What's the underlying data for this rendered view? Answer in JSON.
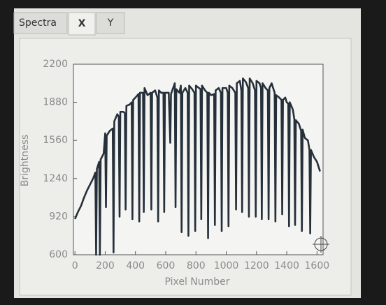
{
  "tabs": [
    "Spectra",
    "X",
    "Y"
  ],
  "chart_data": {
    "type": "line",
    "x_label": "Pixel Number",
    "y_label": "Brightness",
    "xlim": [
      -10,
      1640
    ],
    "ylim": [
      600,
      2200
    ],
    "xticks": [
      0,
      200,
      400,
      600,
      800,
      1000,
      1200,
      1400,
      1600
    ],
    "yticks": [
      600,
      920,
      1240,
      1560,
      1880,
      2200
    ],
    "grid": false,
    "series": [
      {
        "color": "#26303a",
        "x": [
          0,
          20,
          40,
          60,
          80,
          100,
          120,
          135,
          140,
          145,
          160,
          165,
          170,
          190,
          200,
          205,
          210,
          230,
          250,
          255,
          260,
          280,
          290,
          295,
          300,
          320,
          330,
          335,
          340,
          360,
          375,
          380,
          385,
          400,
          420,
          425,
          430,
          445,
          450,
          455,
          460,
          480,
          500,
          505,
          510,
          530,
          545,
          550,
          555,
          570,
          585,
          590,
          595,
          620,
          630,
          635,
          660,
          665,
          670,
          690,
          700,
          705,
          710,
          730,
          745,
          750,
          755,
          775,
          790,
          795,
          800,
          820,
          830,
          835,
          840,
          860,
          875,
          880,
          885,
          900,
          920,
          925,
          930,
          950,
          965,
          970,
          975,
          1000,
          1010,
          1015,
          1020,
          1040,
          1060,
          1065,
          1070,
          1090,
          1100,
          1105,
          1110,
          1130,
          1145,
          1150,
          1155,
          1175,
          1190,
          1195,
          1200,
          1220,
          1230,
          1235,
          1240,
          1260,
          1275,
          1280,
          1285,
          1300,
          1320,
          1325,
          1330,
          1350,
          1365,
          1370,
          1375,
          1390,
          1400,
          1410,
          1415,
          1420,
          1440,
          1450,
          1455,
          1460,
          1480,
          1495,
          1500,
          1505,
          1520,
          1540,
          1550,
          1555,
          1560,
          1580,
          1600,
          1620
        ],
        "values": [
          900,
          960,
          1010,
          1080,
          1140,
          1190,
          1240,
          1290,
          600,
          1320,
          1380,
          600,
          1400,
          1450,
          1620,
          1000,
          1600,
          1640,
          1660,
          620,
          1720,
          1780,
          1760,
          920,
          1800,
          1800,
          1790,
          980,
          1850,
          1860,
          1880,
          900,
          1900,
          1920,
          1950,
          880,
          1960,
          1960,
          1960,
          960,
          2000,
          1940,
          1960,
          980,
          1960,
          1980,
          1920,
          880,
          1980,
          1960,
          1960,
          960,
          1960,
          1960,
          1540,
          1950,
          2040,
          1000,
          1990,
          1960,
          2020,
          790,
          1960,
          2000,
          1960,
          760,
          2020,
          1990,
          1960,
          800,
          2020,
          2000,
          1990,
          900,
          2020,
          1980,
          1960,
          740,
          1960,
          1940,
          1950,
          850,
          1980,
          2000,
          1960,
          800,
          2000,
          2000,
          1960,
          840,
          2020,
          2000,
          1960,
          980,
          2040,
          2060,
          1980,
          960,
          2080,
          2050,
          2000,
          920,
          2080,
          2040,
          1980,
          920,
          2060,
          2040,
          2000,
          900,
          2040,
          2000,
          1980,
          900,
          2000,
          2040,
          1960,
          880,
          1940,
          1920,
          1900,
          940,
          1900,
          1920,
          1880,
          1870,
          840,
          1880,
          1820,
          1740,
          850,
          1730,
          1700,
          1640,
          800,
          1650,
          1580,
          1560,
          1480,
          780,
          1480,
          1420,
          1380,
          1300
        ]
      }
    ]
  }
}
